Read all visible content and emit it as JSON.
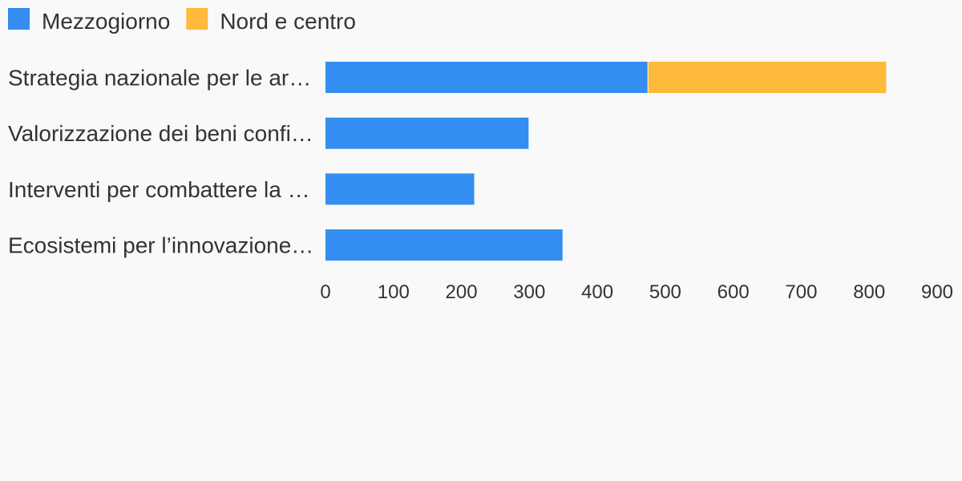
{
  "chart_data": {
    "type": "bar",
    "orientation": "horizontal",
    "stacked": true,
    "title": "",
    "xlabel": "",
    "ylabel": "",
    "categories": [
      "Strategia nazionale per le ar…",
      "Valorizzazione dei beni confi…",
      "Interventi per combattere la …",
      "Ecosistemi per l’innovazione…"
    ],
    "series": [
      {
        "name": "Mezzogiorno",
        "color": "#348df0",
        "values": [
          475,
          300,
          220,
          350
        ]
      },
      {
        "name": "Nord e centro",
        "color": "#ffb93b",
        "values": [
          350,
          0,
          0,
          0
        ]
      }
    ],
    "xlim": [
      0,
      900
    ],
    "xticks": [
      0,
      100,
      200,
      300,
      400,
      500,
      600,
      700,
      800,
      900
    ],
    "grid": false,
    "legend_position": "top-left"
  }
}
